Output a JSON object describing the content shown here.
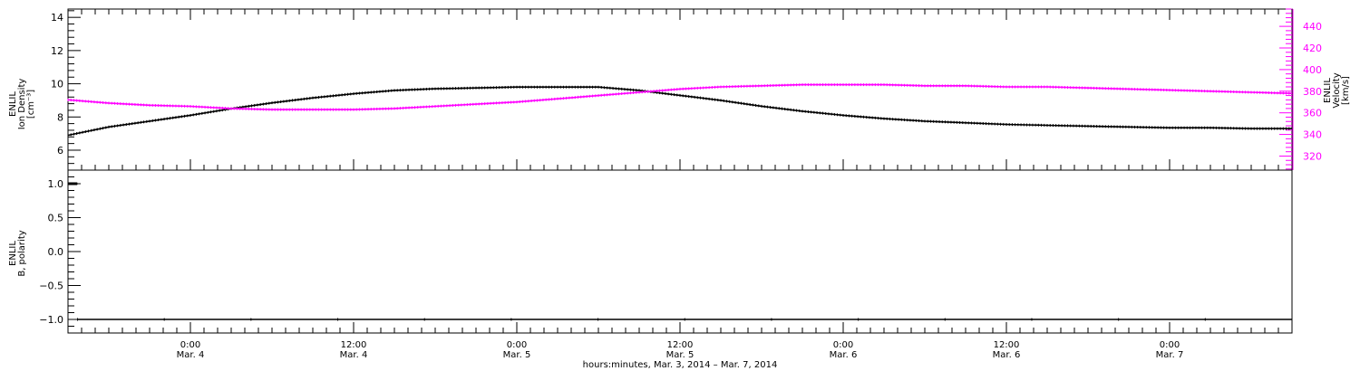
{
  "chart_data": [
    {
      "type": "line",
      "panel": "top",
      "ylabel_lines": [
        "ENLIL",
        "Ion Density",
        "[cm⁻³]"
      ],
      "ylim": [
        4.8,
        14.5
      ],
      "yticks": [
        6,
        8,
        10,
        12,
        14
      ],
      "ylabel_right_lines": [
        "ENLIL",
        "Velocity",
        "[km/s]"
      ],
      "ylim_right": [
        307,
        456
      ],
      "yticks_right": [
        320,
        340,
        360,
        380,
        400,
        420,
        440
      ],
      "right_axis_color": "#ff00ff",
      "series": [
        {
          "axis": "left",
          "color": "#000000",
          "x": [
            -9,
            -6,
            -3,
            0,
            3,
            6,
            9,
            12,
            15,
            18,
            21,
            24,
            27,
            30,
            33,
            36,
            39,
            42,
            45,
            48,
            51,
            54,
            57,
            60,
            63,
            66,
            69,
            72,
            75,
            78,
            81
          ],
          "values": [
            6.9,
            7.4,
            7.75,
            8.1,
            8.5,
            8.85,
            9.15,
            9.4,
            9.6,
            9.7,
            9.75,
            9.8,
            9.8,
            9.8,
            9.6,
            9.3,
            9.0,
            8.65,
            8.35,
            8.1,
            7.9,
            7.75,
            7.65,
            7.55,
            7.5,
            7.45,
            7.4,
            7.35,
            7.35,
            7.3,
            7.3
          ]
        },
        {
          "axis": "right",
          "color": "#ff00ff",
          "x": [
            -9,
            -6,
            -3,
            0,
            3,
            6,
            9,
            12,
            15,
            18,
            21,
            24,
            27,
            30,
            33,
            36,
            39,
            42,
            45,
            48,
            51,
            54,
            57,
            60,
            63,
            66,
            69,
            72,
            75,
            78,
            81
          ],
          "values": [
            372,
            369,
            367,
            366,
            364,
            363,
            363,
            363,
            364,
            366,
            368,
            370,
            373,
            376,
            379,
            382,
            384,
            385,
            386,
            386,
            386,
            385,
            385,
            384,
            384,
            383,
            382,
            381,
            380,
            379,
            378
          ]
        }
      ]
    },
    {
      "type": "line",
      "panel": "bottom",
      "ylabel_lines": [
        "ENLIL",
        "B, polarity"
      ],
      "ylim": [
        -1.2,
        1.2
      ],
      "yticks": [
        -1.0,
        -0.5,
        0.0,
        0.5,
        1.0
      ],
      "ytick_labels": [
        "−1.0",
        "−0.5",
        "0.0",
        "0.5",
        "1.0"
      ],
      "series": [
        {
          "color": "#000000",
          "x": [
            -9,
            -8.3
          ],
          "values": [
            1.0,
            1.0
          ]
        },
        {
          "color": "#000000",
          "x": [
            -8.3,
            81
          ],
          "values": [
            -1.0,
            -1.0
          ]
        }
      ]
    }
  ],
  "x_axis": {
    "xlim": [
      -9,
      81
    ],
    "ticks": [
      {
        "x": 0,
        "time": "0:00",
        "date": "Mar. 4"
      },
      {
        "x": 12,
        "time": "12:00",
        "date": "Mar. 4"
      },
      {
        "x": 24,
        "time": "0:00",
        "date": "Mar. 5"
      },
      {
        "x": 36,
        "time": "12:00",
        "date": "Mar. 5"
      },
      {
        "x": 48,
        "time": "0:00",
        "date": "Mar. 6"
      },
      {
        "x": 60,
        "time": "12:00",
        "date": "Mar. 6"
      },
      {
        "x": 72,
        "time": "0:00",
        "date": "Mar. 7"
      }
    ],
    "xlabel": "hours:minutes, Mar.  3, 2014 – Mar.  7, 2014"
  }
}
